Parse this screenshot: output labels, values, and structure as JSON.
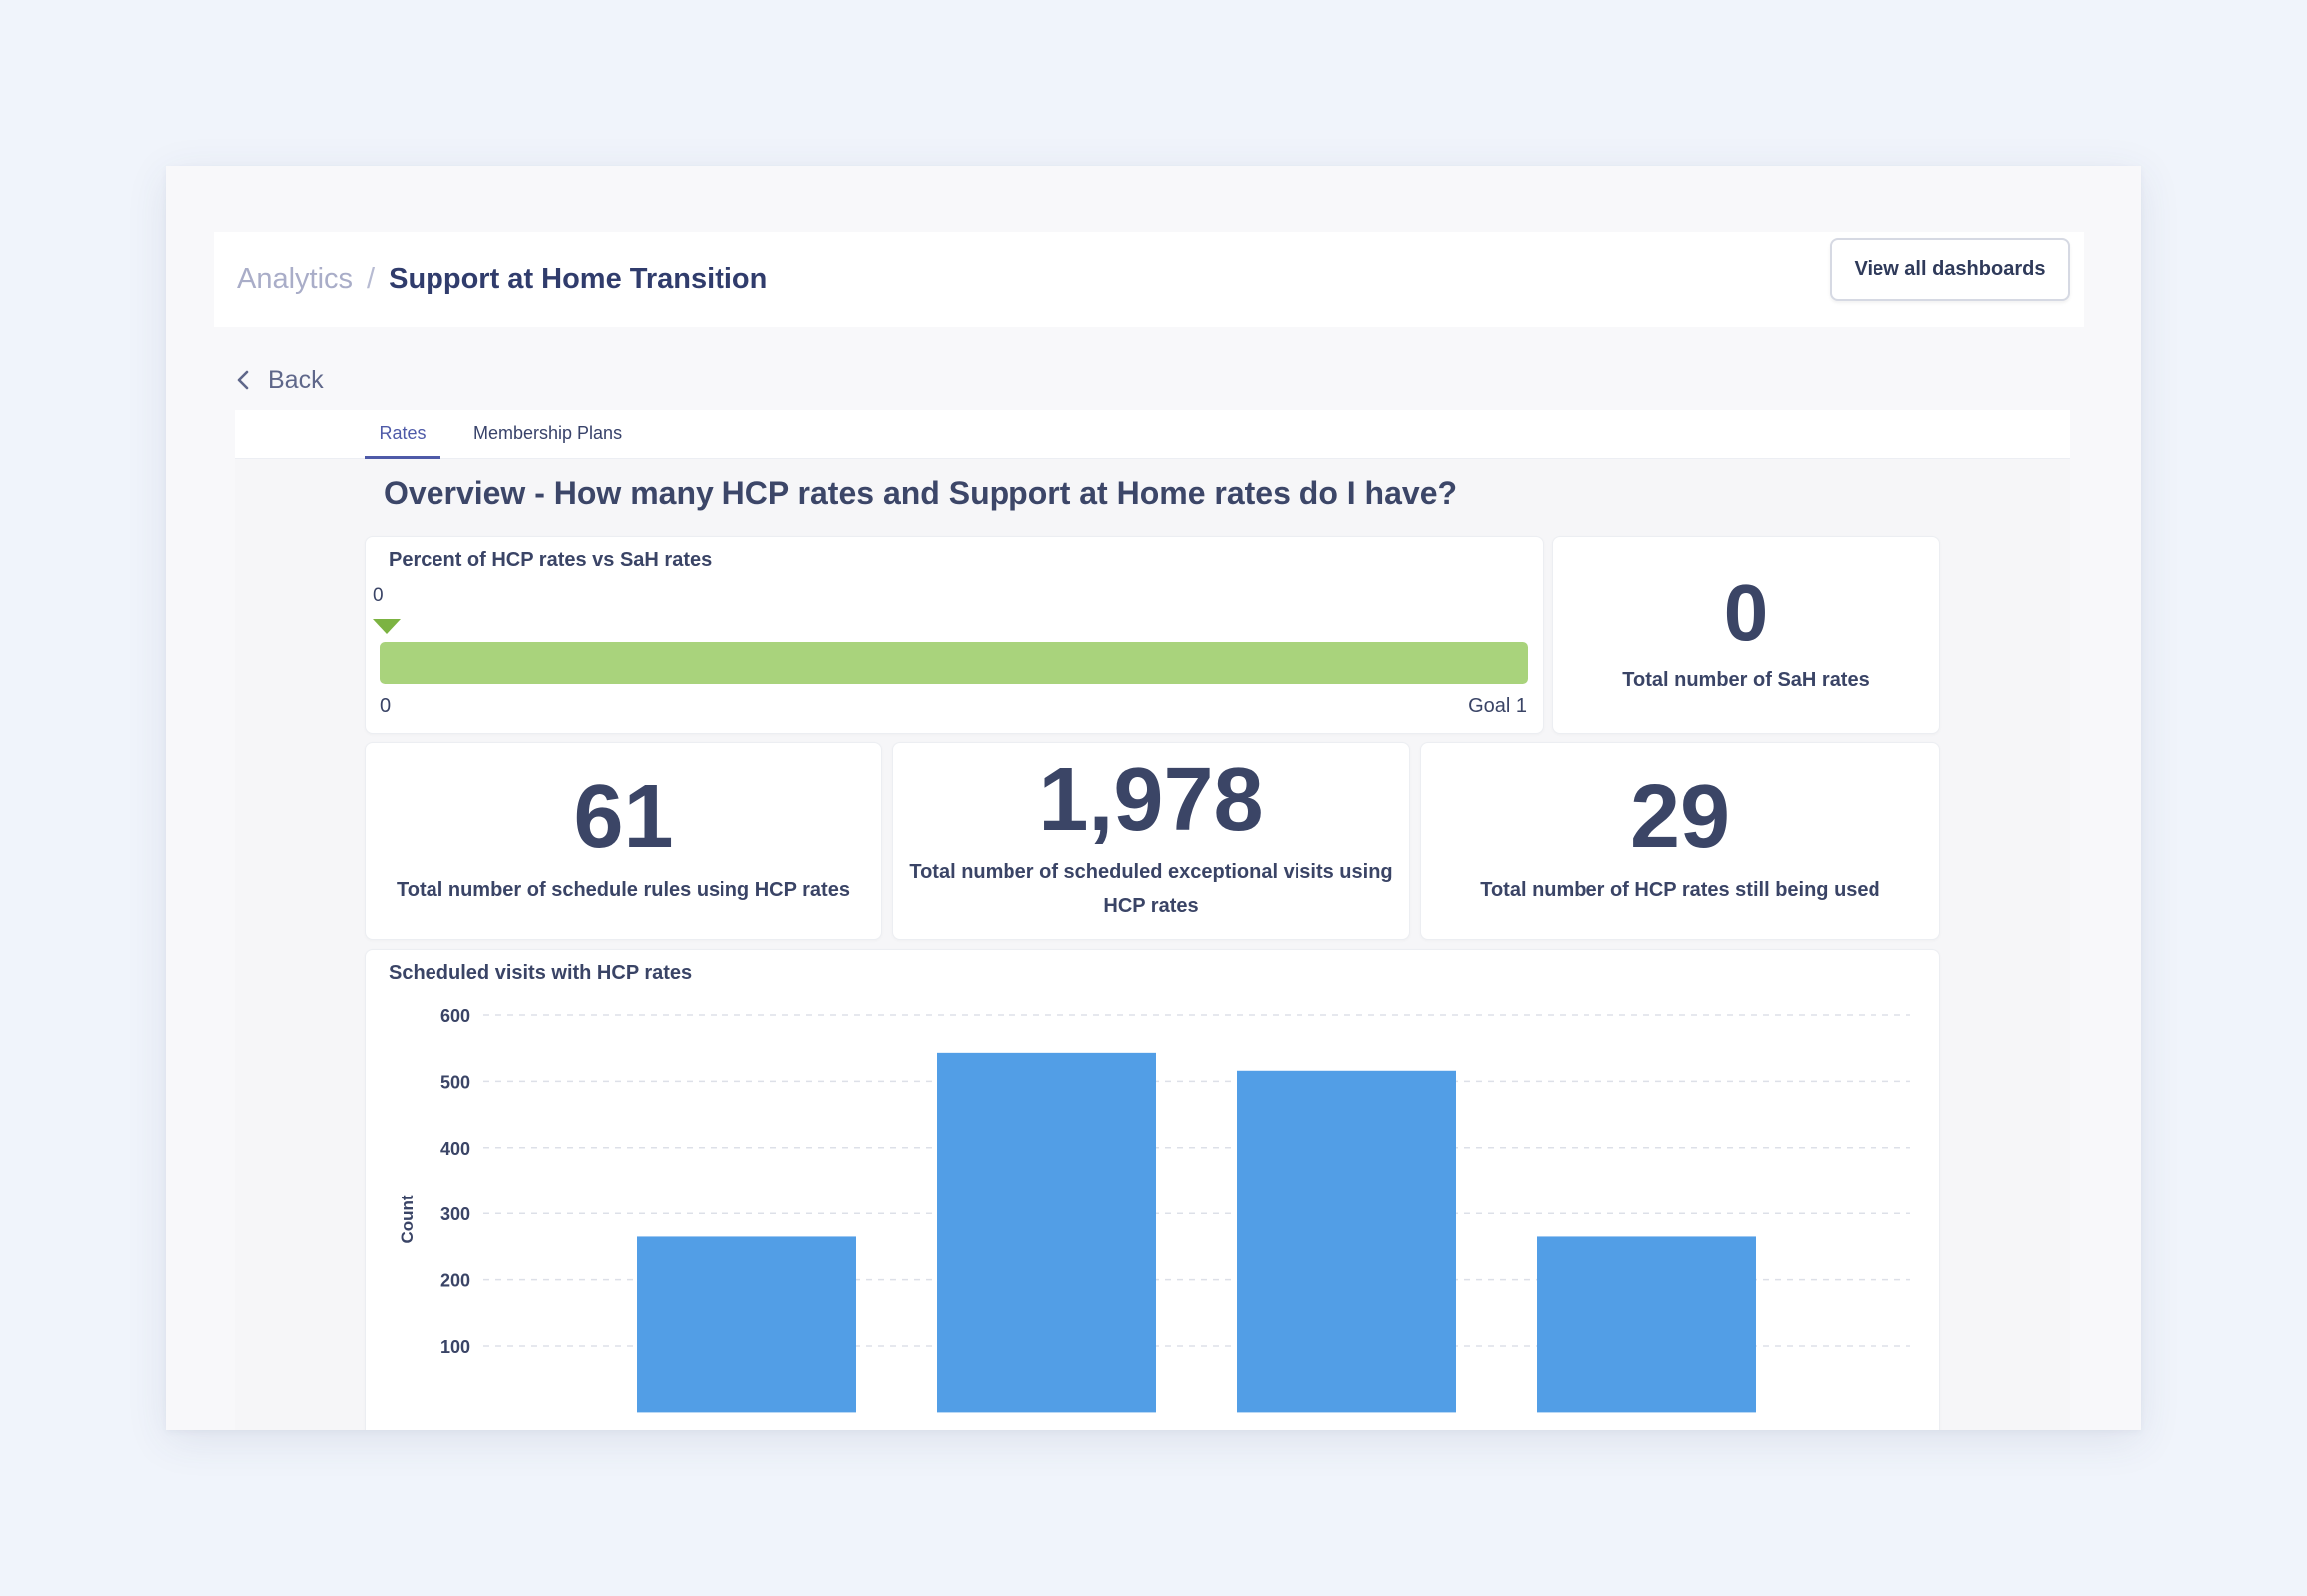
{
  "breadcrumb": {
    "parent": "Analytics",
    "separator": "/",
    "current": "Support at Home Transition"
  },
  "header": {
    "view_all_label": "View all dashboards"
  },
  "nav": {
    "back_label": "Back"
  },
  "tabs": [
    {
      "label": "Rates",
      "active": true
    },
    {
      "label": "Membership Plans",
      "active": false
    }
  ],
  "section": {
    "title": "Overview - How many HCP rates and Support at Home rates do I have?"
  },
  "gauge": {
    "title": "Percent of HCP rates vs SaH rates",
    "value": "0",
    "min_label": "0",
    "goal_label": "Goal 1",
    "fill_fraction": 1.0,
    "fill_color": "#a9d37c",
    "marker_color": "#7cb342"
  },
  "kpis": {
    "sah_rates": {
      "value": "0",
      "label": "Total number of SaH rates"
    },
    "schedule_rules": {
      "value": "61",
      "label": "Total number of schedule rules using HCP rates"
    },
    "exceptional_visits": {
      "value": "1,978",
      "label": "Total number of scheduled exceptional visits using HCP rates"
    },
    "hcp_rates_used": {
      "value": "29",
      "label": "Total number of HCP rates still being used"
    }
  },
  "chart_data": {
    "type": "bar",
    "title": "Scheduled visits with HCP rates",
    "ylabel": "Count",
    "xlabel": "",
    "ylim": [
      0,
      600
    ],
    "yticks": [
      100,
      200,
      300,
      400,
      500,
      600
    ],
    "values": [
      265,
      543,
      516,
      265
    ],
    "bar_color": "#529ee6",
    "grid": true
  }
}
